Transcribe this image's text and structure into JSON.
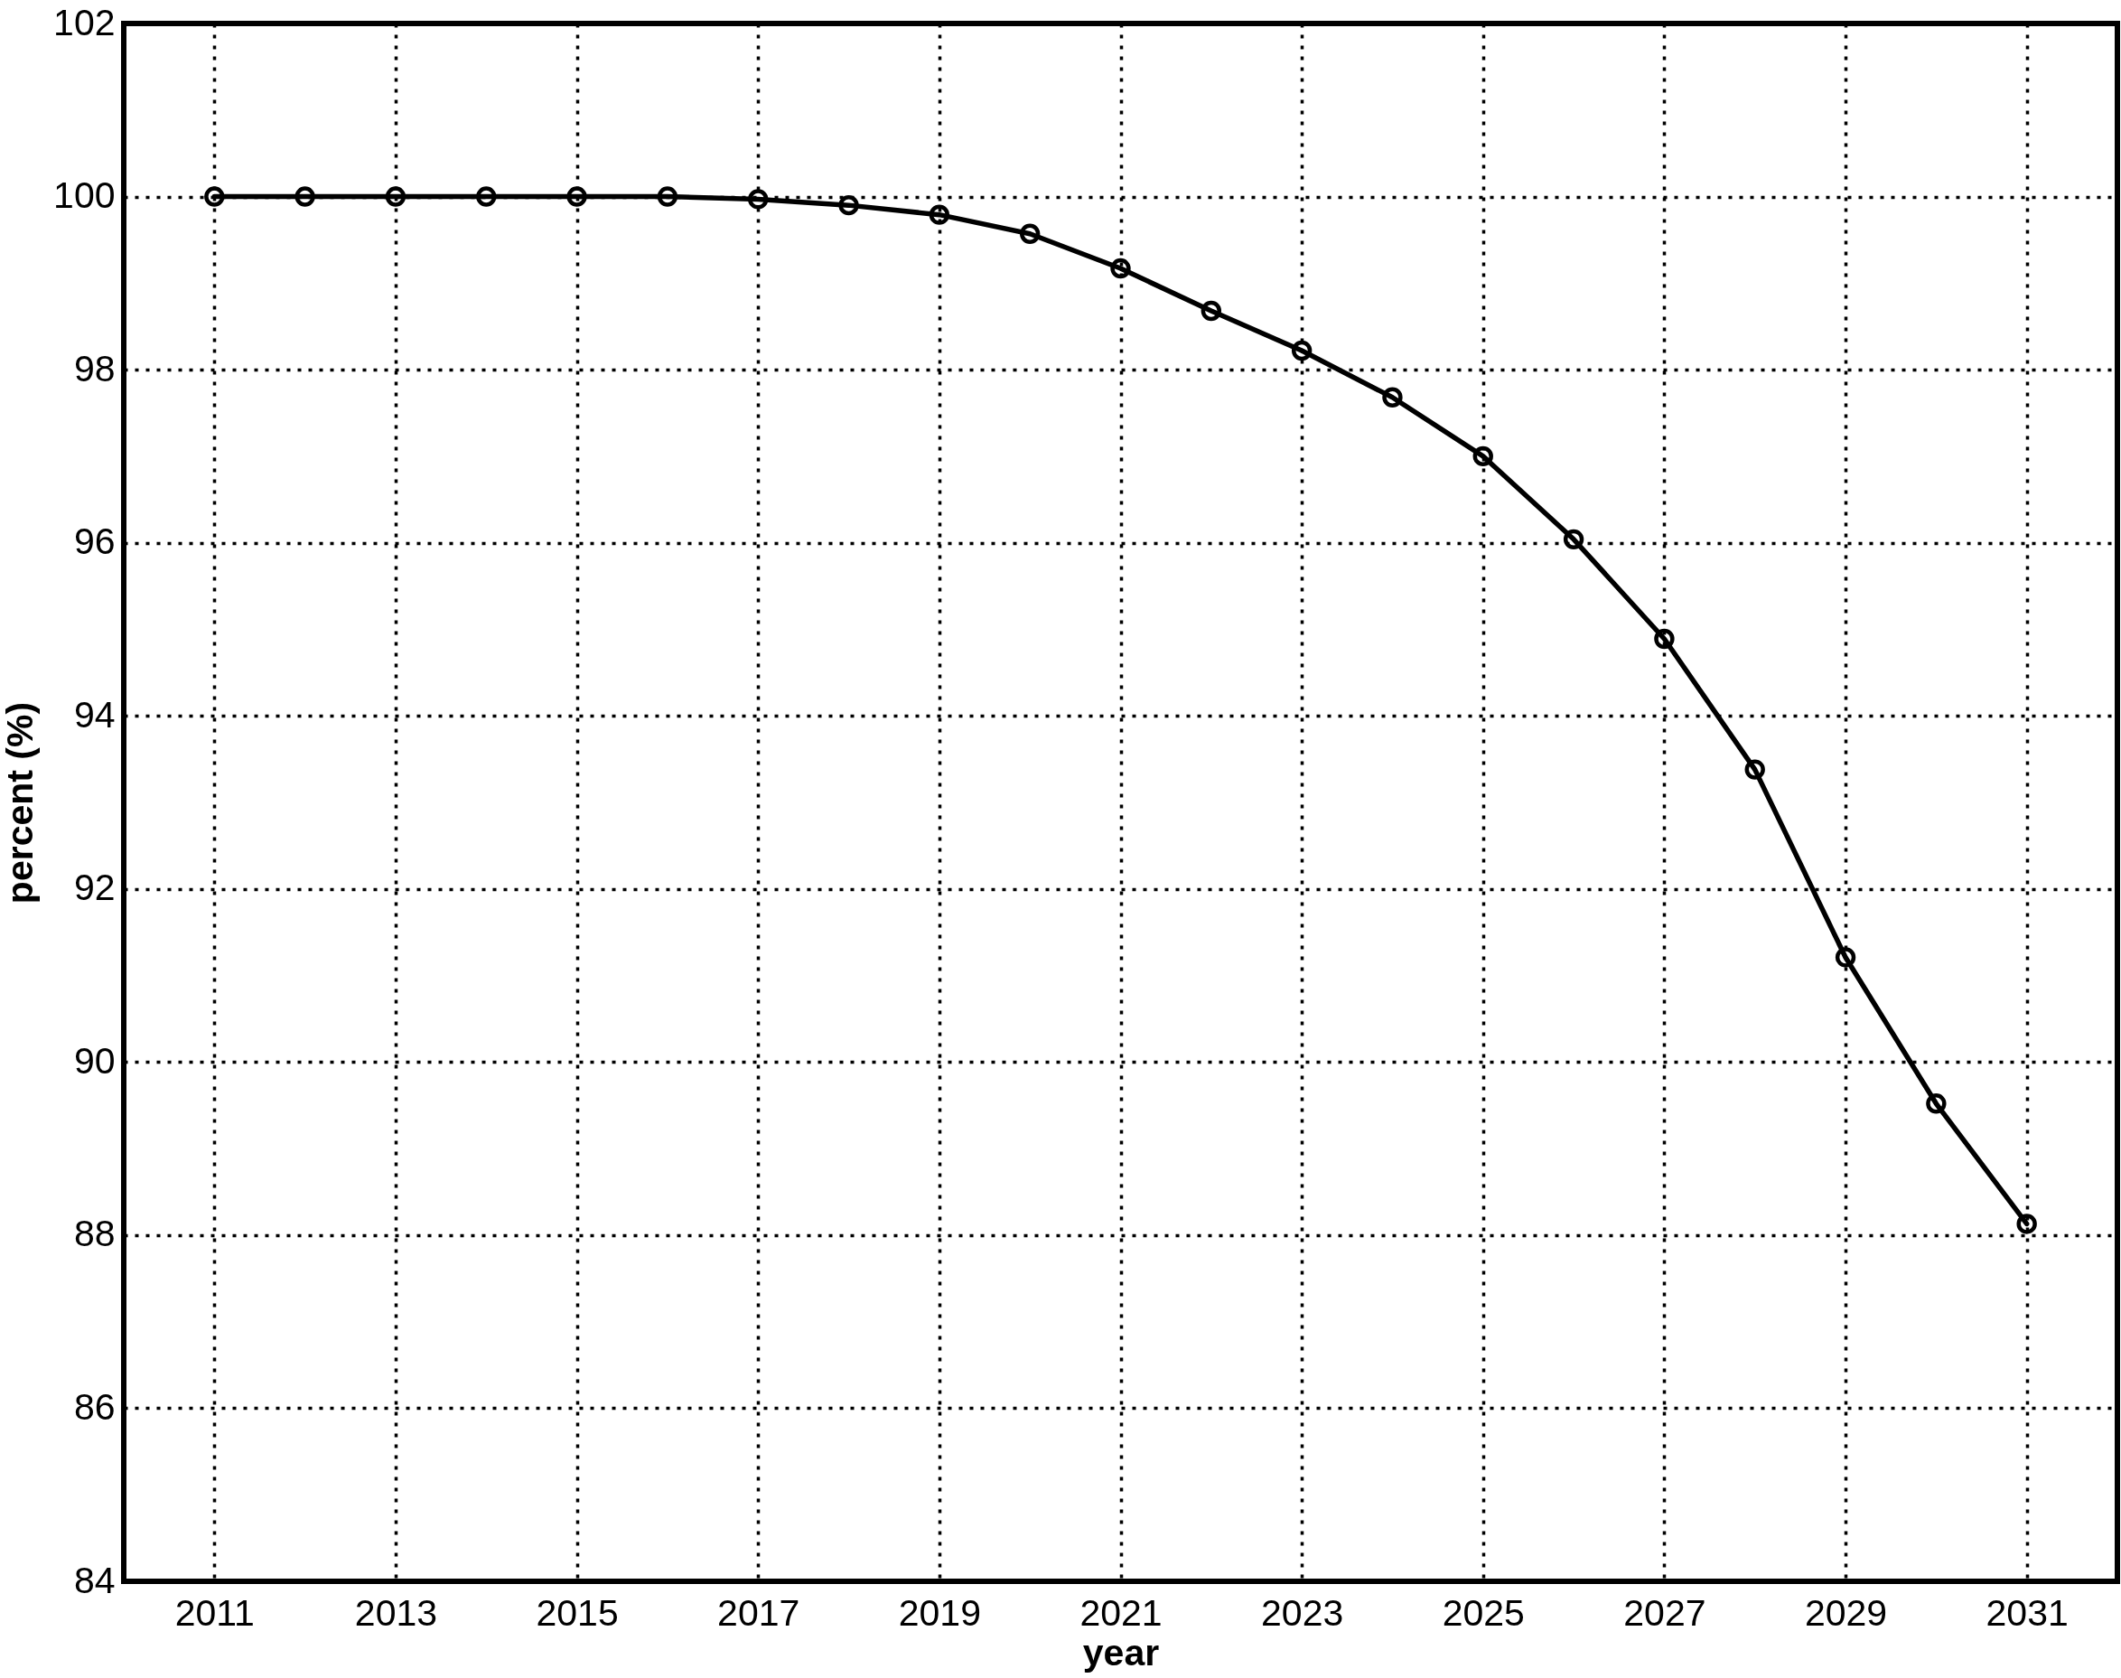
{
  "chart_data": {
    "type": "line",
    "xlabel": "year",
    "ylabel": "percent (%)",
    "x": [
      2011,
      2012,
      2013,
      2014,
      2015,
      2016,
      2017,
      2018,
      2019,
      2020,
      2021,
      2022,
      2023,
      2024,
      2025,
      2026,
      2027,
      2028,
      2029,
      2030,
      2031
    ],
    "series": [
      {
        "color": "#000000",
        "values": [
          100,
          100,
          100,
          100,
          100,
          100,
          99.97,
          99.9,
          99.79,
          99.57,
          99.17,
          98.68,
          98.22,
          97.68,
          97.0,
          96.04,
          94.89,
          93.38,
          91.21,
          89.52,
          88.13
        ]
      }
    ],
    "xlim": [
      2010,
      2032
    ],
    "ylim": [
      84,
      102
    ],
    "xticks": [
      2011,
      2013,
      2015,
      2017,
      2019,
      2021,
      2023,
      2025,
      2027,
      2029,
      2031
    ],
    "yticks": [
      84,
      86,
      88,
      90,
      92,
      94,
      96,
      98,
      100,
      102
    ],
    "grid": true,
    "marker": "circle",
    "line_style": "solid"
  }
}
